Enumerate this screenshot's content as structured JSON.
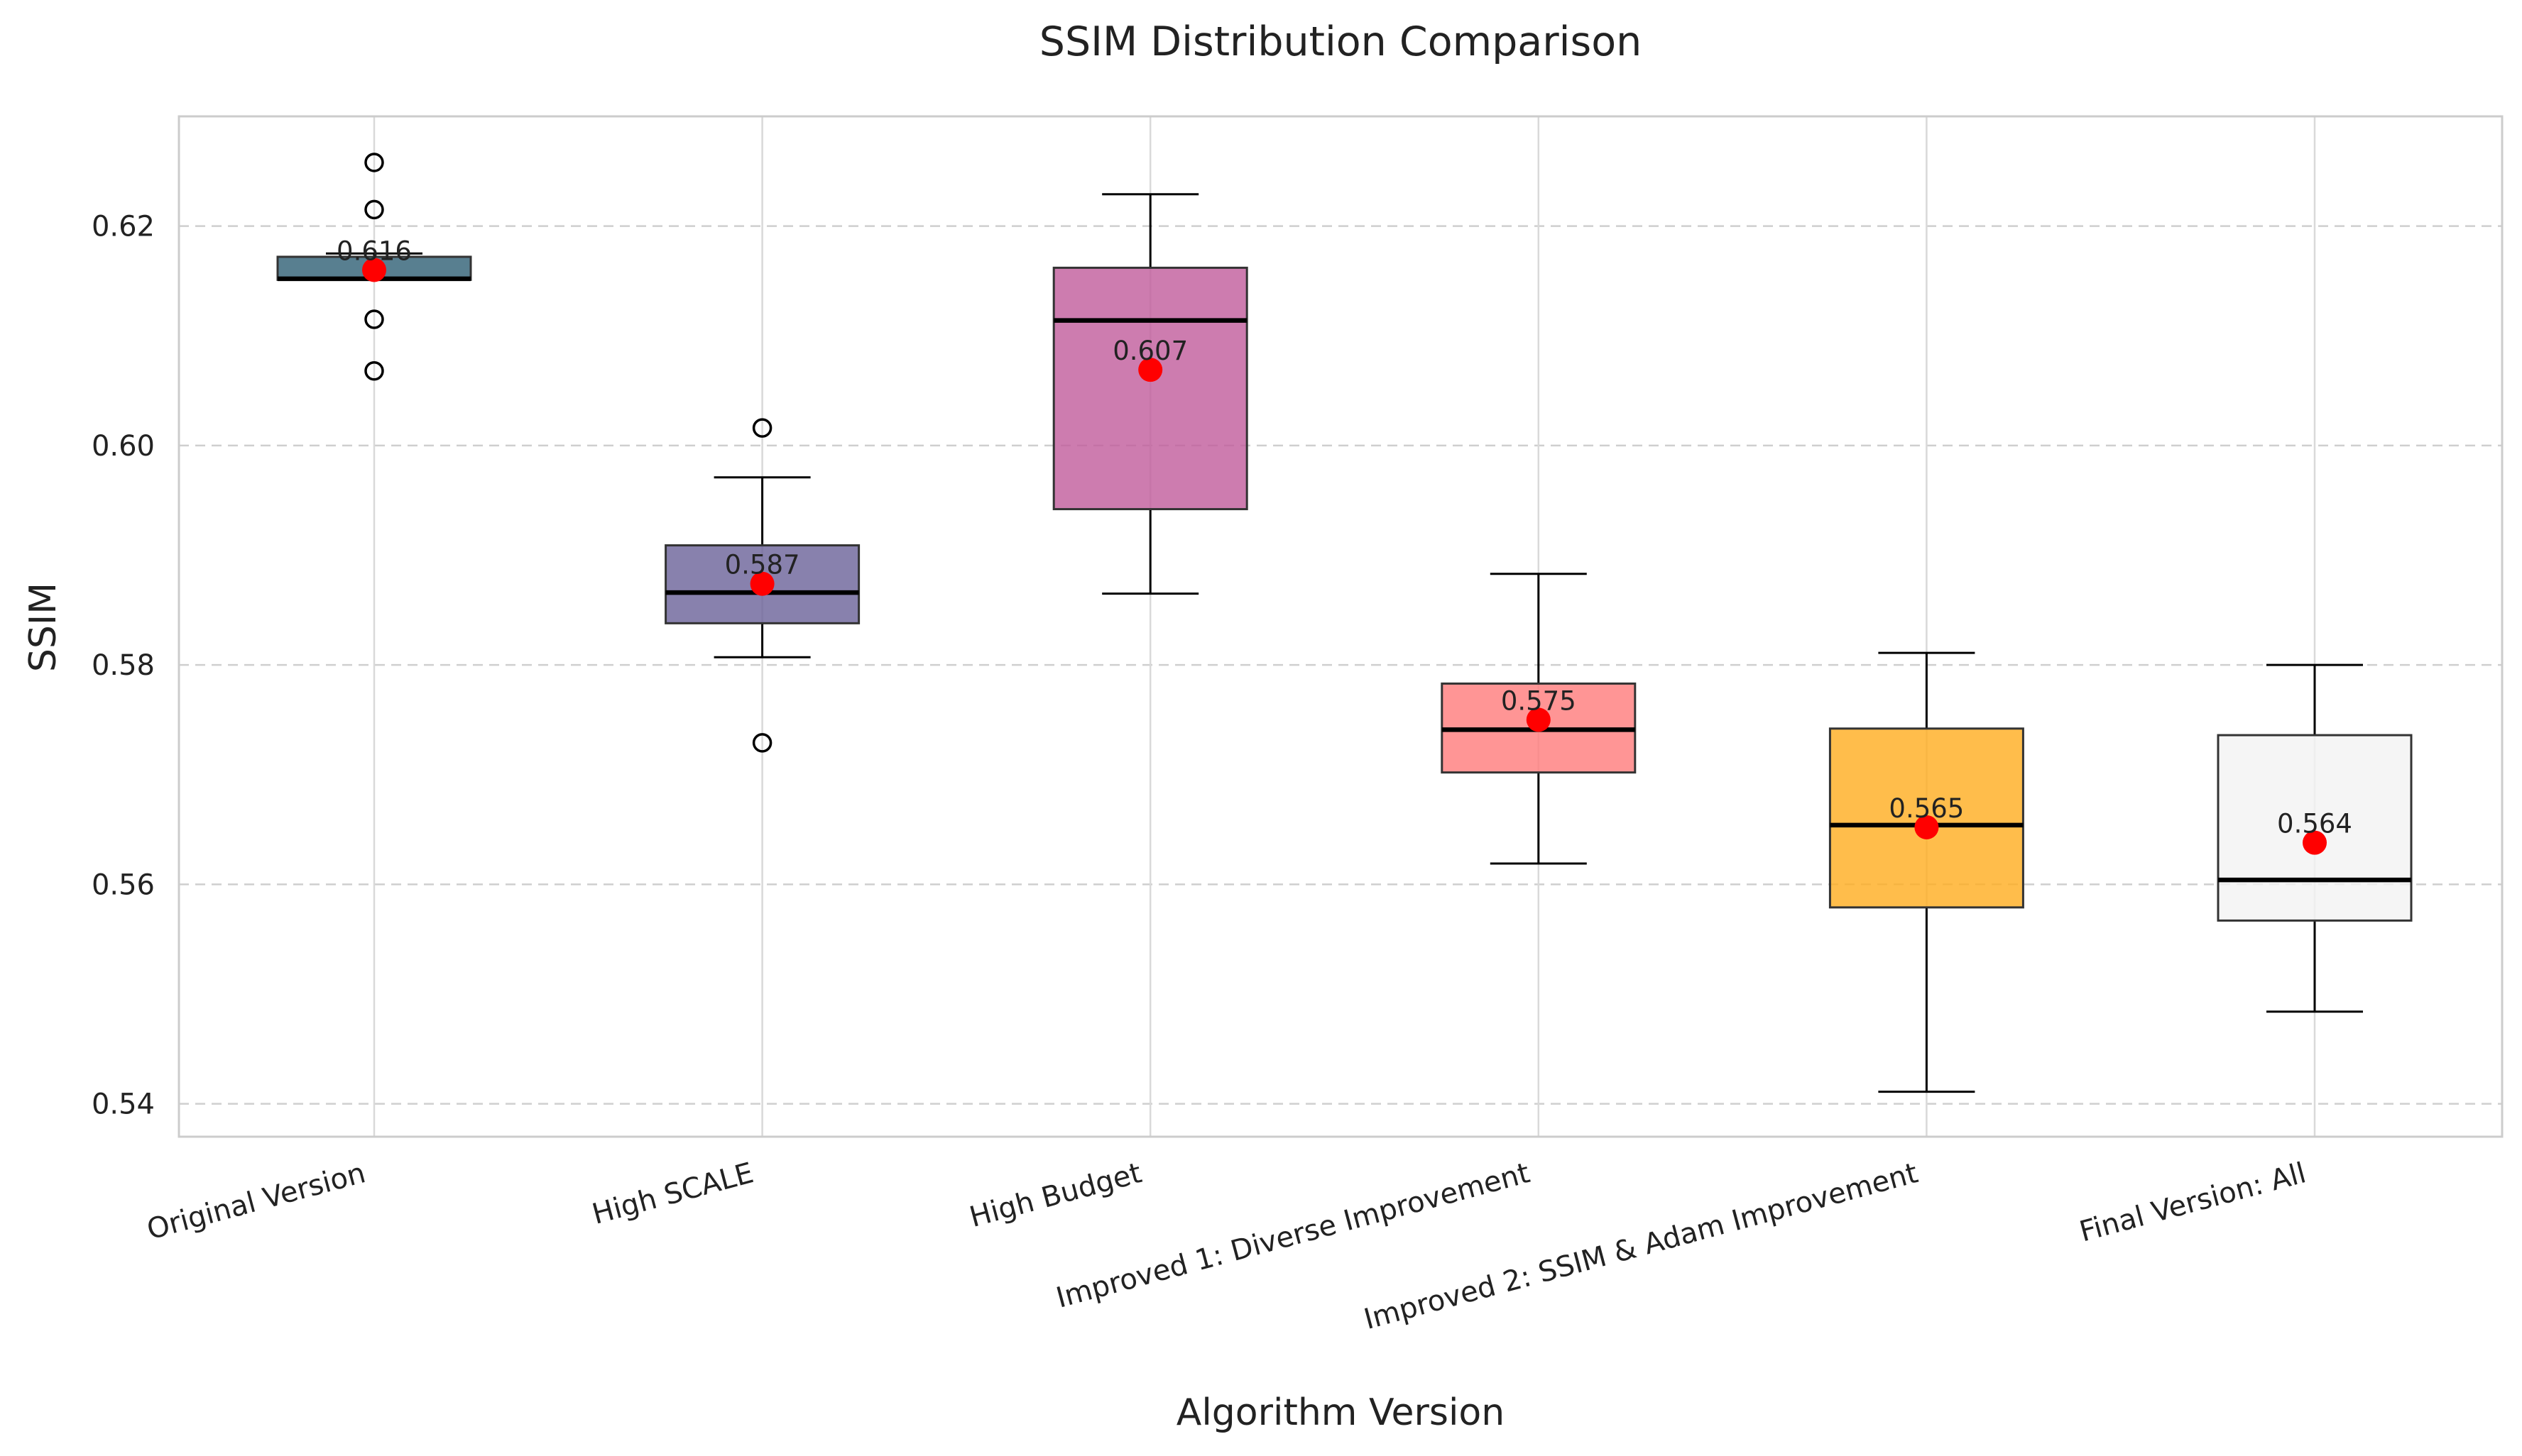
{
  "chart_data": {
    "type": "box",
    "title": "SSIM Distribution Comparison",
    "xlabel": "Algorithm Version",
    "ylabel": "SSIM",
    "ylim": [
      0.537,
      0.63
    ],
    "yticks": [
      0.54,
      0.56,
      0.58,
      0.6,
      0.62
    ],
    "ytick_labels": [
      "0.54",
      "0.56",
      "0.58",
      "0.60",
      "0.62"
    ],
    "grid": true,
    "mean_marker_color": "#ff0000",
    "categories": [
      "Original Version",
      "High SCALE",
      "High Budget",
      "Improved 1: Diverse Improvement",
      "Improved 2: SSIM & Adam Improvement",
      "Final Version: All"
    ],
    "boxes": [
      {
        "name": "Original Version",
        "color": "#2e5f74",
        "whisker_low": 0.6151,
        "q1": 0.6151,
        "median": 0.6152,
        "q3": 0.6172,
        "whisker_high": 0.6175,
        "mean": 0.616,
        "mean_label": "0.616",
        "outliers": [
          0.6258,
          0.6215,
          0.6115,
          0.6068
        ]
      },
      {
        "name": "High SCALE",
        "color": "#6a6299",
        "whisker_low": 0.5807,
        "q1": 0.5838,
        "median": 0.5866,
        "q3": 0.5909,
        "whisker_high": 0.5971,
        "mean": 0.5874,
        "mean_label": "0.587",
        "outliers": [
          0.6016,
          0.5729
        ]
      },
      {
        "name": "High Budget",
        "color": "#c15b9b",
        "whisker_low": 0.5865,
        "q1": 0.5942,
        "median": 0.6114,
        "q3": 0.6162,
        "whisker_high": 0.6229,
        "mean": 0.6069,
        "mean_label": "0.607",
        "outliers": []
      },
      {
        "name": "Improved 1: Diverse Improvement",
        "color": "#ff7a7a",
        "whisker_low": 0.5619,
        "q1": 0.5702,
        "median": 0.5741,
        "q3": 0.5783,
        "whisker_high": 0.5883,
        "mean": 0.575,
        "mean_label": "0.575",
        "outliers": []
      },
      {
        "name": "Improved 2: SSIM & Adam Improvement",
        "color": "#ffac1e",
        "whisker_low": 0.5411,
        "q1": 0.5579,
        "median": 0.5654,
        "q3": 0.5742,
        "whisker_high": 0.5811,
        "mean": 0.5652,
        "mean_label": "0.565",
        "outliers": []
      },
      {
        "name": "Final Version: All",
        "color": "#f3f3f3",
        "whisker_low": 0.5484,
        "q1": 0.5567,
        "median": 0.5604,
        "q3": 0.5736,
        "whisker_high": 0.58,
        "mean": 0.5638,
        "mean_label": "0.564",
        "outliers": []
      }
    ]
  }
}
